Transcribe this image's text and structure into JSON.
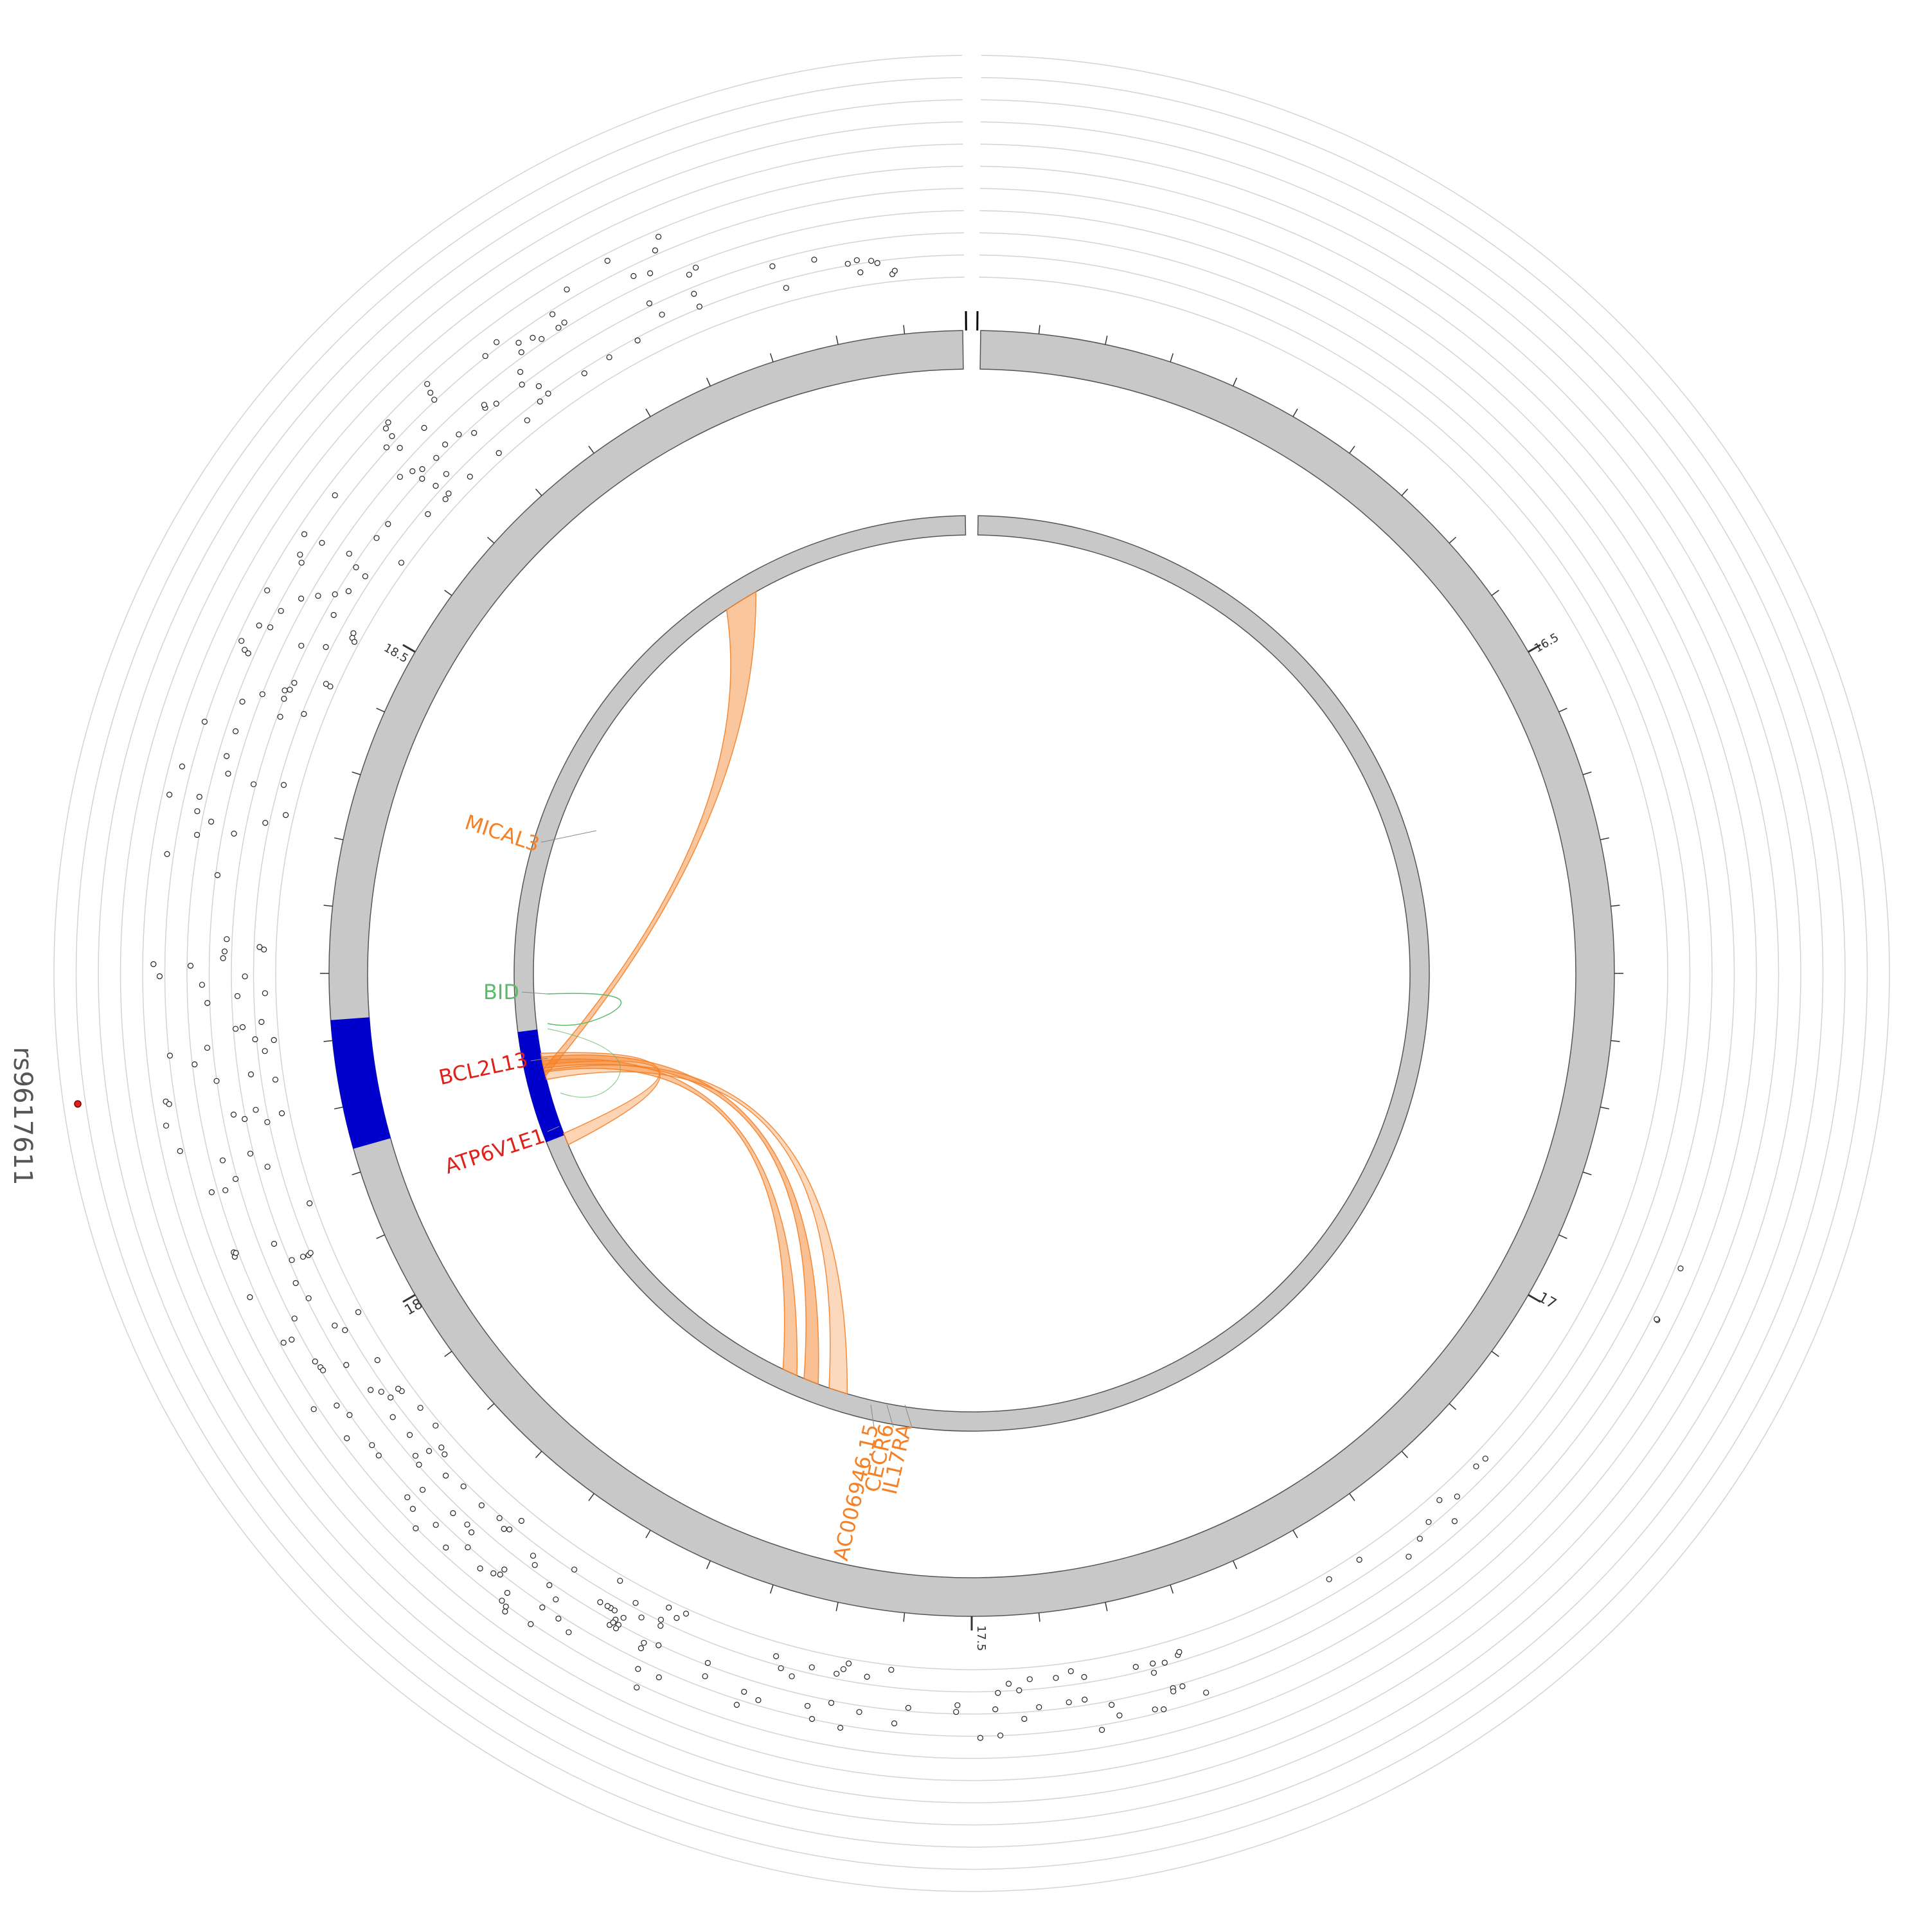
{
  "tick_labels": [
    "16.5",
    "17",
    "17.5",
    "18",
    "18.5"
  ],
  "snp_label": "rs9617611",
  "genes": [
    {
      "name": "MICAL3",
      "color": "#f58026"
    },
    {
      "name": "BID",
      "color": "#5cba6a"
    },
    {
      "name": "BCL2L13",
      "color": "#e0211b"
    },
    {
      "name": "ATP6V1E1",
      "color": "#e0211b"
    },
    {
      "name": "AC006946.15",
      "color": "#f58026"
    },
    {
      "name": "CECR6",
      "color": "#f58026"
    },
    {
      "name": "IL17RA",
      "color": "#f58026"
    }
  ],
  "colors": {
    "ideogram": "#c8c8c8",
    "highlight": "#0000cd",
    "ring": "#d3d3d3",
    "link": "#f58026",
    "snp": "#e0211b",
    "text": "#333333"
  }
}
